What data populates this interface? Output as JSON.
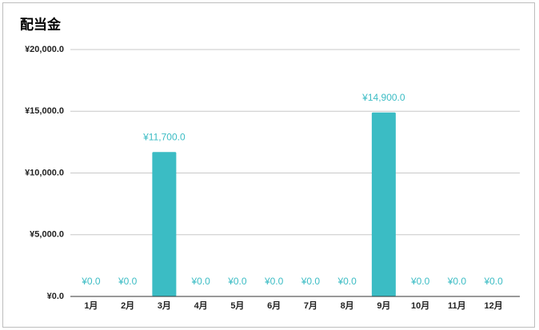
{
  "chart_data": {
    "type": "bar",
    "title": "配当金",
    "categories": [
      "1月",
      "2月",
      "3月",
      "4月",
      "5月",
      "6月",
      "7月",
      "8月",
      "9月",
      "10月",
      "11月",
      "12月"
    ],
    "values": [
      0,
      0,
      11700,
      0,
      0,
      0,
      0,
      0,
      14900,
      0,
      0,
      0
    ],
    "value_labels": [
      "¥0.0",
      "¥0.0",
      "¥11,700.0",
      "¥0.0",
      "¥0.0",
      "¥0.0",
      "¥0.0",
      "¥0.0",
      "¥14,900.0",
      "¥0.0",
      "¥0.0",
      "¥0.0"
    ],
    "color": "#3bbcc4",
    "ylim": [
      0,
      20000
    ],
    "yticks": [
      {
        "value": 0,
        "label": "¥0.0"
      },
      {
        "value": 5000,
        "label": "¥5,000.0"
      },
      {
        "value": 10000,
        "label": "¥10,000.0"
      },
      {
        "value": 15000,
        "label": "¥15,000.0"
      },
      {
        "value": 20000,
        "label": "¥20,000.0"
      }
    ],
    "grid": true
  }
}
